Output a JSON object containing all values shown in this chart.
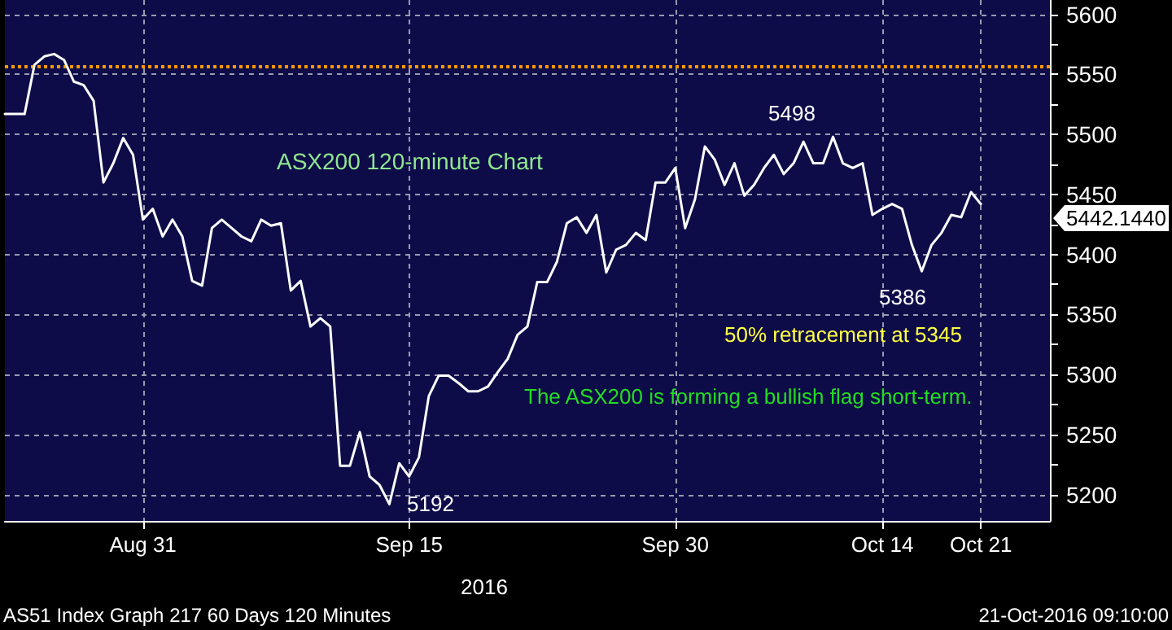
{
  "chart_data": {
    "type": "line",
    "title": "ASX200 120-minute Chart",
    "xlabel": "2016",
    "categories": [
      null,
      null,
      null,
      null,
      null,
      null,
      null,
      null,
      null,
      null,
      null,
      null,
      null,
      null,
      "Aug 31",
      null,
      null,
      null,
      null,
      null,
      null,
      null,
      null,
      null,
      null,
      null,
      null,
      null,
      null,
      null,
      null,
      null,
      null,
      null,
      null,
      null,
      null,
      null,
      null,
      null,
      null,
      "Sep 15",
      null,
      null,
      null,
      null,
      null,
      null,
      null,
      null,
      null,
      null,
      null,
      null,
      null,
      null,
      null,
      null,
      null,
      null,
      null,
      null,
      null,
      null,
      null,
      null,
      null,
      null,
      "Sep 30",
      null,
      null,
      null,
      null,
      null,
      null,
      null,
      null,
      null,
      null,
      null,
      null,
      null,
      null,
      null,
      null,
      null,
      null,
      null,
      null,
      "Oct 14",
      null,
      null,
      null,
      null,
      null,
      null,
      null,
      null,
      null,
      "Oct 21",
      null,
      null,
      null,
      null,
      null,
      null,
      null
    ],
    "series": [
      {
        "color": "#ffffff",
        "values": [
          5517,
          5517,
          5517,
          5558,
          5565,
          5567,
          5562,
          5544,
          5541,
          5528,
          5460,
          5476,
          5497,
          5483,
          5429,
          5438,
          5415,
          5429,
          5415,
          5378,
          5374,
          5422,
          5429,
          5422,
          5415,
          5411,
          5429,
          5424,
          5426,
          5370,
          5378,
          5340,
          5347,
          5340,
          5224,
          5224,
          5252,
          5215,
          5208,
          5192,
          5226,
          5215,
          5231,
          5282,
          5299,
          5299,
          5293,
          5286,
          5286,
          5290,
          5302,
          5313,
          5333,
          5340,
          5377,
          5377,
          5394,
          5426,
          5431,
          5418,
          5433,
          5385,
          5404,
          5408,
          5418,
          5412,
          5460,
          5460,
          5472,
          5422,
          5446,
          5490,
          5479,
          5458,
          5476,
          5449,
          5458,
          5472,
          5483,
          5467,
          5476,
          5494,
          5476,
          5476,
          5498,
          5476,
          5472,
          5476,
          5433,
          5438,
          5442,
          5438,
          5408,
          5386,
          5408,
          5418,
          5433,
          5431,
          5452,
          5442,
          null,
          null,
          null,
          null,
          null,
          null,
          null
        ]
      }
    ],
    "ylim": [
      5178,
      5612
    ],
    "yticks": [
      5200,
      {
        "value": 5225,
        "label": null
      },
      5250,
      {
        "value": 5275,
        "label": null
      },
      5300,
      {
        "value": 5325,
        "label": null
      },
      5350,
      {
        "value": 5375,
        "label": null
      },
      5400,
      {
        "value": 5425,
        "label": null
      },
      5450,
      {
        "value": 5475,
        "label": null
      },
      5500,
      {
        "value": 5525,
        "label": null
      },
      5550,
      {
        "value": 5575,
        "label": null
      },
      5600
    ],
    "grid": true,
    "marker": "none",
    "line_style": "solid",
    "ref_lines": [
      {
        "axis": "y",
        "value": 5557,
        "color": "#ff9900",
        "line_style": "dotted"
      }
    ],
    "annotations": [
      "The ASX200 is forming a bullish flag short-term.",
      "50% retracement at 5345",
      "5442.1440",
      "AS51 Index Graph 217 60 Days 120 Minutes",
      "21-Oct-2016 09:10:00",
      "5192",
      "5498",
      "5386"
    ]
  }
}
